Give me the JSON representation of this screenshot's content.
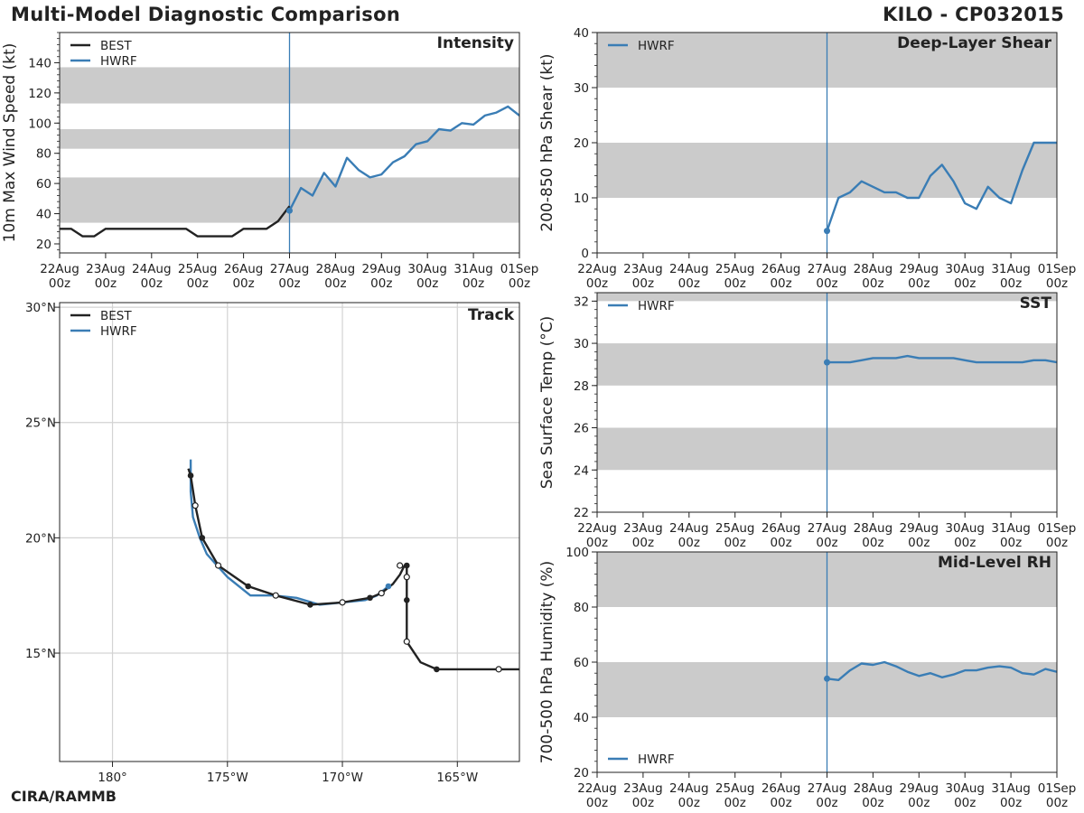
{
  "header": {
    "title": "Multi-Model Diagnostic Comparison",
    "storm_id": "KILO - CP032015"
  },
  "footer": {
    "credit": "CIRA/RAMMB"
  },
  "colors": {
    "best": "#222222",
    "hwrf": "#3a7db5",
    "band": "#cbcbcb",
    "grid": "#d3d3d3"
  },
  "chart_data": [
    {
      "id": "intensity",
      "type": "line",
      "title": "Intensity",
      "xlabel": "",
      "ylabel": "10m Max Wind Speed (kt)",
      "x_unit": "hours since 22Aug 00z",
      "xlim": [
        0,
        240
      ],
      "ylim": [
        14,
        160
      ],
      "yticks": [
        20,
        40,
        60,
        80,
        100,
        120,
        140
      ],
      "xticks": [
        "22Aug\n00z",
        "23Aug\n00z",
        "24Aug\n00z",
        "25Aug\n00z",
        "26Aug\n00z",
        "27Aug\n00z",
        "28Aug\n00z",
        "29Aug\n00z",
        "30Aug\n00z",
        "31Aug\n00z",
        "01Sep\n00z"
      ],
      "bands": [
        [
          34,
          64
        ],
        [
          83,
          96
        ],
        [
          113,
          137
        ]
      ],
      "init_line": 120,
      "legend": [
        "BEST",
        "HWRF"
      ],
      "series": [
        {
          "name": "BEST",
          "x": [
            0,
            6,
            12,
            18,
            24,
            30,
            36,
            42,
            48,
            54,
            60,
            66,
            72,
            78,
            84,
            90,
            96,
            102,
            108,
            114,
            120
          ],
          "y": [
            30,
            30,
            25,
            25,
            30,
            30,
            30,
            30,
            30,
            30,
            30,
            30,
            25,
            25,
            25,
            25,
            30,
            30,
            30,
            35,
            45
          ]
        },
        {
          "name": "HWRF",
          "x": [
            120,
            126,
            132,
            138,
            144,
            150,
            156,
            162,
            168,
            174,
            180,
            186,
            192,
            198,
            204,
            210,
            216,
            222,
            228,
            234,
            240
          ],
          "y": [
            42,
            57,
            52,
            67,
            58,
            77,
            69,
            64,
            66,
            74,
            78,
            86,
            88,
            96,
            95,
            100,
            99,
            105,
            107,
            111,
            105
          ]
        }
      ]
    },
    {
      "id": "shear",
      "type": "line",
      "title": "Deep-Layer Shear",
      "ylabel": "200-850 hPa Shear (kt)",
      "x_unit": "hours since 22Aug 00z",
      "xlim": [
        0,
        240
      ],
      "ylim": [
        0,
        40
      ],
      "yticks": [
        0,
        10,
        20,
        30,
        40
      ],
      "xticks": [
        "22Aug\n00z",
        "23Aug\n00z",
        "24Aug\n00z",
        "25Aug\n00z",
        "26Aug\n00z",
        "27Aug\n00z",
        "28Aug\n00z",
        "29Aug\n00z",
        "30Aug\n00z",
        "31Aug\n00z",
        "01Sep\n00z"
      ],
      "bands": [
        [
          10,
          20
        ],
        [
          30,
          40
        ]
      ],
      "init_line": 120,
      "legend": [
        "HWRF"
      ],
      "series": [
        {
          "name": "HWRF",
          "x": [
            120,
            126,
            132,
            138,
            144,
            150,
            156,
            162,
            168,
            174,
            180,
            186,
            192,
            198,
            204,
            210,
            216,
            222,
            228,
            234,
            240
          ],
          "y": [
            4,
            10,
            11,
            13,
            12,
            11,
            11,
            10,
            10,
            14,
            16,
            13,
            9,
            8,
            12,
            10,
            9,
            15,
            20,
            20,
            20
          ]
        }
      ]
    },
    {
      "id": "sst",
      "type": "line",
      "title": "SST",
      "ylabel": "Sea Surface Temp (°C)",
      "x_unit": "hours since 22Aug 00z",
      "xlim": [
        0,
        240
      ],
      "ylim": [
        22,
        32.4
      ],
      "yticks": [
        22,
        24,
        26,
        28,
        30,
        32
      ],
      "xticks": [
        "22Aug\n00z",
        "23Aug\n00z",
        "24Aug\n00z",
        "25Aug\n00z",
        "26Aug\n00z",
        "27Aug\n00z",
        "28Aug\n00z",
        "29Aug\n00z",
        "30Aug\n00z",
        "31Aug\n00z",
        "01Sep\n00z"
      ],
      "bands": [
        [
          24,
          26
        ],
        [
          28,
          30
        ],
        [
          32,
          32.4
        ]
      ],
      "init_line": 120,
      "legend": [
        "HWRF"
      ],
      "series": [
        {
          "name": "HWRF",
          "x": [
            120,
            126,
            132,
            138,
            144,
            150,
            156,
            162,
            168,
            174,
            180,
            186,
            192,
            198,
            204,
            210,
            216,
            222,
            228,
            234,
            240
          ],
          "y": [
            29.1,
            29.1,
            29.1,
            29.2,
            29.3,
            29.3,
            29.3,
            29.4,
            29.3,
            29.3,
            29.3,
            29.3,
            29.2,
            29.1,
            29.1,
            29.1,
            29.1,
            29.1,
            29.2,
            29.2,
            29.1
          ]
        }
      ]
    },
    {
      "id": "rh",
      "type": "line",
      "title": "Mid-Level RH",
      "ylabel": "700-500 hPa Humidity (%)",
      "x_unit": "hours since 22Aug 00z",
      "xlim": [
        0,
        240
      ],
      "ylim": [
        20,
        100
      ],
      "yticks": [
        20,
        40,
        60,
        80,
        100
      ],
      "xticks": [
        "22Aug\n00z",
        "23Aug\n00z",
        "24Aug\n00z",
        "25Aug\n00z",
        "26Aug\n00z",
        "27Aug\n00z",
        "28Aug\n00z",
        "29Aug\n00z",
        "30Aug\n00z",
        "31Aug\n00z",
        "01Sep\n00z"
      ],
      "bands": [
        [
          40,
          60
        ],
        [
          80,
          100
        ]
      ],
      "init_line": 120,
      "legend": [
        "HWRF"
      ],
      "legend_pos": "bottom-left",
      "series": [
        {
          "name": "HWRF",
          "x": [
            120,
            126,
            132,
            138,
            144,
            150,
            156,
            162,
            168,
            174,
            180,
            186,
            192,
            198,
            204,
            210,
            216,
            222,
            228,
            234,
            240
          ],
          "y": [
            54,
            53.5,
            57,
            59.5,
            59,
            60,
            58.5,
            56.5,
            55,
            56,
            54.5,
            55.5,
            57,
            57,
            58,
            58.5,
            58,
            56,
            55.5,
            57.5,
            56.5
          ]
        }
      ]
    },
    {
      "id": "track",
      "type": "track",
      "title": "Track",
      "xlim": [
        -182.3,
        -162.3
      ],
      "ylim": [
        10.3,
        30.2
      ],
      "xticks": [
        -180,
        -175,
        -170,
        -165
      ],
      "xtick_labels": [
        "180°",
        "175°W",
        "170°W",
        "165°W"
      ],
      "yticks": [
        15,
        20,
        25,
        30
      ],
      "ytick_labels": [
        "15°N",
        "20°N",
        "25°N",
        "30°N"
      ],
      "legend": [
        "BEST",
        "HWRF"
      ],
      "series": [
        {
          "name": "BEST",
          "lon": [
            -162.3,
            -163.2,
            -165.9,
            -166.6,
            -167.2,
            -167.2,
            -167.2,
            -167.3,
            -167.5,
            -167.8,
            -168.3,
            -168.8,
            -170.0,
            -171.4,
            -172.9,
            -174.1,
            -175.4,
            -176.1,
            -176.4,
            -176.6,
            -176.7
          ],
          "lat": [
            14.3,
            14.3,
            14.3,
            14.6,
            15.5,
            17.3,
            18.8,
            18.8,
            18.4,
            18.0,
            17.6,
            17.4,
            17.2,
            17.1,
            17.5,
            17.9,
            18.8,
            20.0,
            21.4,
            22.7,
            23.0
          ],
          "markers": [
            [
              -163.2,
              14.3,
              "o"
            ],
            [
              -165.9,
              14.3,
              "f"
            ],
            [
              -167.2,
              15.5,
              "o"
            ],
            [
              -167.2,
              17.3,
              "f"
            ],
            [
              -167.2,
              18.3,
              "o"
            ],
            [
              -167.2,
              18.8,
              "f"
            ],
            [
              -167.5,
              18.8,
              "o"
            ],
            [
              -168.3,
              17.6,
              "o"
            ],
            [
              -168.8,
              17.4,
              "f"
            ],
            [
              -170.0,
              17.2,
              "o"
            ],
            [
              -171.4,
              17.1,
              "f"
            ],
            [
              -172.9,
              17.5,
              "o"
            ],
            [
              -174.1,
              17.9,
              "f"
            ],
            [
              -175.4,
              18.8,
              "o"
            ],
            [
              -176.1,
              20.0,
              "f"
            ],
            [
              -176.4,
              21.4,
              "o"
            ],
            [
              -176.6,
              22.7,
              "f"
            ]
          ]
        },
        {
          "name": "HWRF",
          "lon": [
            -168.0,
            -168.5,
            -169.0,
            -170.0,
            -171.0,
            -172.0,
            -173.0,
            -174.0,
            -175.0,
            -175.9,
            -176.2,
            -176.5,
            -176.6,
            -176.6
          ],
          "lat": [
            17.9,
            17.5,
            17.3,
            17.2,
            17.1,
            17.4,
            17.5,
            17.5,
            18.3,
            19.3,
            20.0,
            20.9,
            22.0,
            23.4
          ],
          "markers": [
            [
              -168.0,
              17.9,
              "f"
            ]
          ]
        }
      ]
    }
  ]
}
